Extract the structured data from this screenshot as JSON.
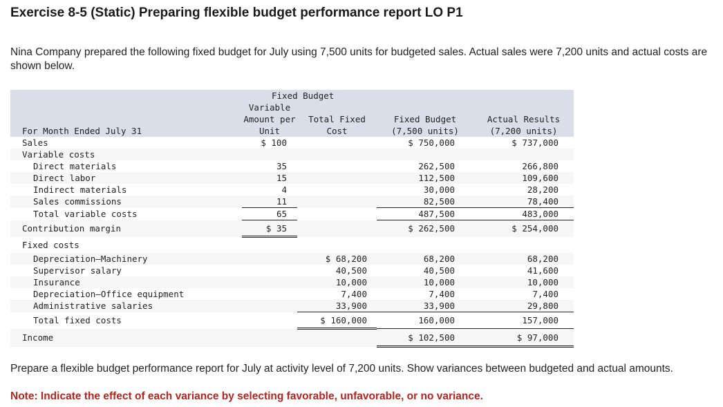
{
  "title": "Exercise 8-5 (Static) Preparing flexible budget performance report LO P1",
  "intro": "Nina Company prepared the following fixed budget for July using 7,500 units for budgeted sales. Actual sales were 7,200 units and actual costs are shown below.",
  "table": {
    "header": {
      "period": "For Month Ended July 31",
      "group": "Fixed Budget",
      "var_l1": "Variable",
      "var_l2": "Amount per",
      "var_l3": "Unit",
      "fixed_l1": "Total Fixed",
      "fixed_l2": "Cost",
      "fb_l1": "Fixed Budget",
      "fb_l2": "(7,500 units)",
      "ar_l1": "Actual Results",
      "ar_l2": "(7,200 units)"
    },
    "rows": [
      {
        "label": "Sales",
        "v": "$ 100",
        "f": "",
        "fb": "$ 750,000",
        "ar": "$ 737,000"
      },
      {
        "label": "Variable costs",
        "v": "",
        "f": "",
        "fb": "",
        "ar": ""
      },
      {
        "label": "Direct materials",
        "v": "35",
        "f": "",
        "fb": "262,500",
        "ar": "266,800"
      },
      {
        "label": "Direct labor",
        "v": "15",
        "f": "",
        "fb": "112,500",
        "ar": "109,600"
      },
      {
        "label": "Indirect materials",
        "v": "4",
        "f": "",
        "fb": "30,000",
        "ar": "28,200"
      },
      {
        "label": "Sales commissions",
        "v": "11",
        "f": "",
        "fb": "82,500",
        "ar": "78,400"
      },
      {
        "label": "Total variable costs",
        "v": "65",
        "f": "",
        "fb": "487,500",
        "ar": "483,000"
      },
      {
        "label": "Contribution margin",
        "v": "$ 35",
        "f": "",
        "fb": "$ 262,500",
        "ar": "$ 254,000"
      },
      {
        "label": "Fixed costs",
        "v": "",
        "f": "",
        "fb": "",
        "ar": ""
      },
      {
        "label": "Depreciation—Machinery",
        "v": "",
        "f": "$ 68,200",
        "fb": "68,200",
        "ar": "68,200"
      },
      {
        "label": "Supervisor salary",
        "v": "",
        "f": "40,500",
        "fb": "40,500",
        "ar": "41,600"
      },
      {
        "label": "Insurance",
        "v": "",
        "f": "10,000",
        "fb": "10,000",
        "ar": "10,000"
      },
      {
        "label": "Depreciation—Office equipment",
        "v": "",
        "f": "7,400",
        "fb": "7,400",
        "ar": "7,400"
      },
      {
        "label": "Administrative salaries",
        "v": "",
        "f": "33,900",
        "fb": "33,900",
        "ar": "29,800"
      },
      {
        "label": "Total fixed costs",
        "v": "",
        "f": "$ 160,000",
        "fb": "160,000",
        "ar": "157,000"
      },
      {
        "label": "Income",
        "v": "",
        "f": "",
        "fb": "$ 102,500",
        "ar": "$ 97,000"
      }
    ]
  },
  "prompt": "Prepare a flexible budget performance report for July at activity level of 7,200 units. Show variances between budgeted and actual amounts.",
  "note": "Note: Indicate the effect of each variance by selecting favorable, unfavorable, or no variance.",
  "colors": {
    "header_bg": "#d9dee8",
    "note": "#b3261e"
  }
}
